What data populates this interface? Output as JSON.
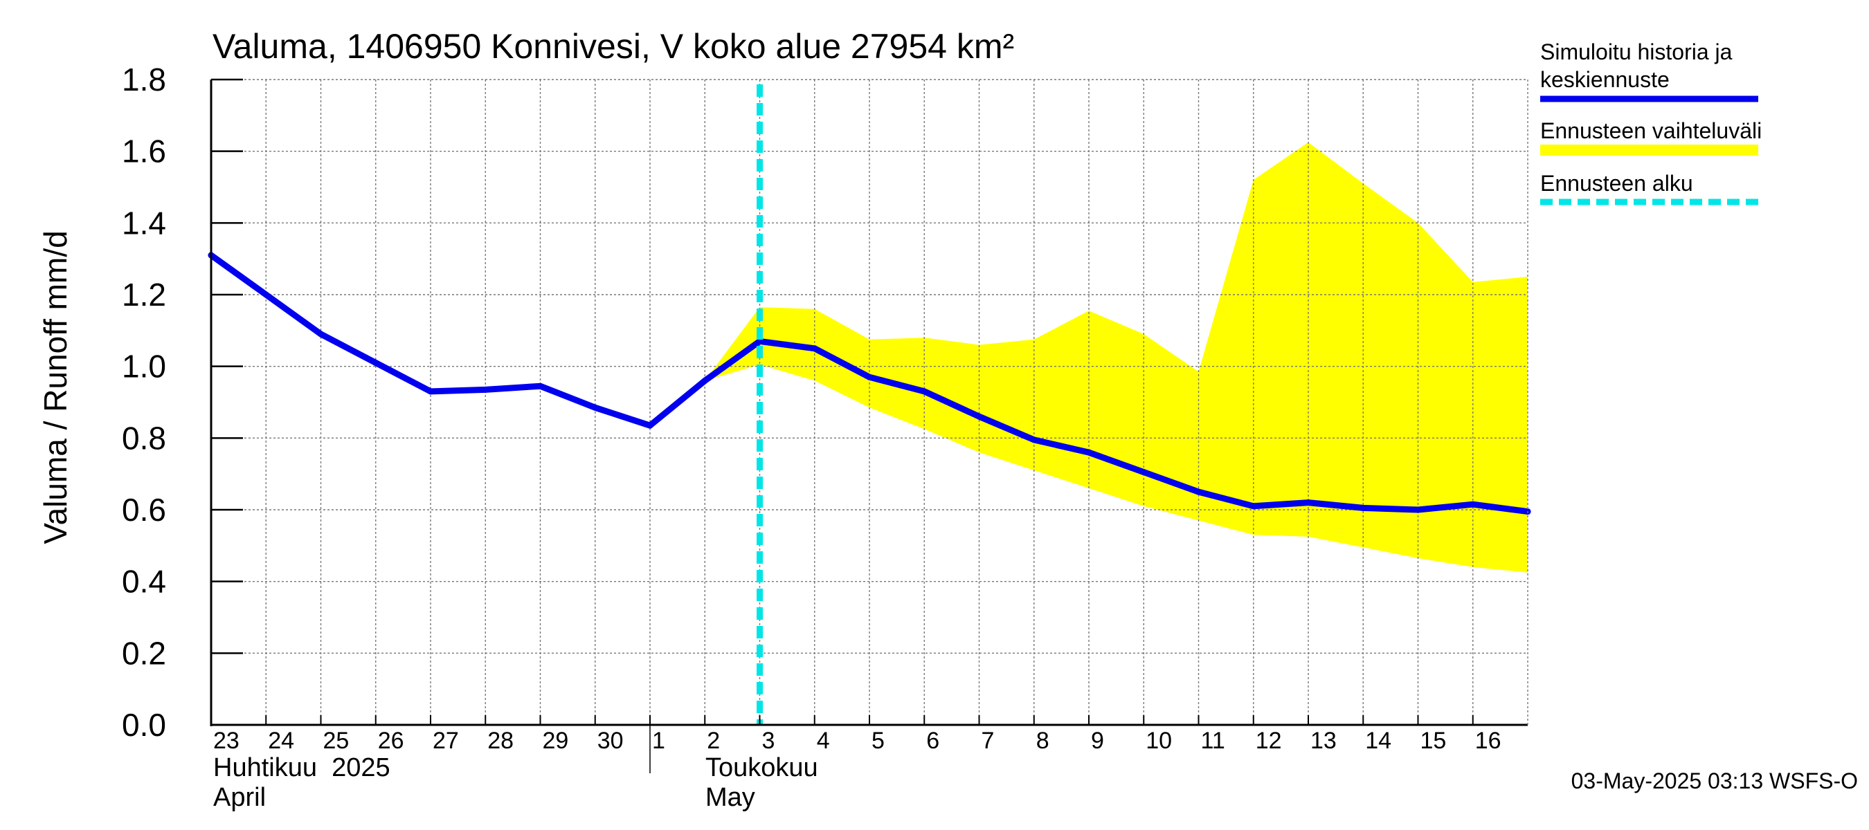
{
  "chart_data": {
    "type": "line",
    "title": "Valuma, 1406950 Konnivesi, V koko alue 27954 km²",
    "ylabel": "Valuma / Runoff     mm/d",
    "ylim": [
      0,
      1.8
    ],
    "yticks": [
      "0.0",
      "0.2",
      "0.4",
      "0.6",
      "0.8",
      "1.0",
      "1.2",
      "1.4",
      "1.6",
      "1.8"
    ],
    "xticks": [
      "23",
      "24",
      "25",
      "26",
      "27",
      "28",
      "29",
      "30",
      "1",
      "2",
      "3",
      "4",
      "5",
      "6",
      "7",
      "8",
      "9",
      "10",
      "11",
      "12",
      "13",
      "14",
      "15",
      "16"
    ],
    "month_labels": [
      {
        "fi": "Huhtikuu  2025",
        "en": "April"
      },
      {
        "fi": "Toukokuu",
        "en": "May"
      }
    ],
    "grid": true,
    "x_start": "2025-04-23",
    "forecast_start": "2025-05-03",
    "series": [
      {
        "name": "Simuloitu historia ja keskiennuste",
        "color": "#0000ee",
        "x": [
          "2025-04-23",
          "2025-04-24",
          "2025-04-25",
          "2025-04-26",
          "2025-04-27",
          "2025-04-28",
          "2025-04-29",
          "2025-04-30",
          "2025-05-01",
          "2025-05-02",
          "2025-05-03",
          "2025-05-04",
          "2025-05-05",
          "2025-05-06",
          "2025-05-07",
          "2025-05-08",
          "2025-05-09",
          "2025-05-10",
          "2025-05-11",
          "2025-05-12",
          "2025-05-13",
          "2025-05-14",
          "2025-05-15",
          "2025-05-16",
          "2025-05-17"
        ],
        "values": [
          1.31,
          1.2,
          1.09,
          1.01,
          0.93,
          0.935,
          0.945,
          0.885,
          0.835,
          0.96,
          1.07,
          1.05,
          0.97,
          0.93,
          0.86,
          0.795,
          0.76,
          0.705,
          0.65,
          0.61,
          0.62,
          0.605,
          0.6,
          0.615,
          0.595
        ]
      }
    ],
    "band": {
      "name": "Ennusteen vaihteluväli",
      "color": "#ffff00",
      "x": [
        "2025-05-02",
        "2025-05-03",
        "2025-05-04",
        "2025-05-05",
        "2025-05-06",
        "2025-05-07",
        "2025-05-08",
        "2025-05-09",
        "2025-05-10",
        "2025-05-11",
        "2025-05-12",
        "2025-05-13",
        "2025-05-14",
        "2025-05-15",
        "2025-05-16",
        "2025-05-17"
      ],
      "upper": [
        0.96,
        1.165,
        1.16,
        1.075,
        1.08,
        1.06,
        1.075,
        1.155,
        1.09,
        0.985,
        1.52,
        1.625,
        1.51,
        1.4,
        1.235,
        1.25
      ],
      "lower": [
        0.96,
        1.005,
        0.96,
        0.885,
        0.825,
        0.76,
        0.71,
        0.66,
        0.61,
        0.57,
        0.53,
        0.525,
        0.495,
        0.465,
        0.44,
        0.425
      ]
    },
    "legend": {
      "position": "right",
      "items": [
        {
          "label_lines": [
            "Simuloitu historia ja",
            "keskiennuste"
          ],
          "color": "#0000ee",
          "style": "solid"
        },
        {
          "label_lines": [
            "Ennusteen vaihteluväli"
          ],
          "color": "#ffff00",
          "style": "band"
        },
        {
          "label_lines": [
            "Ennusteen alku"
          ],
          "color": "#00e5e5",
          "style": "dashed"
        }
      ]
    },
    "footer": "03-May-2025 03:13 WSFS-O"
  }
}
